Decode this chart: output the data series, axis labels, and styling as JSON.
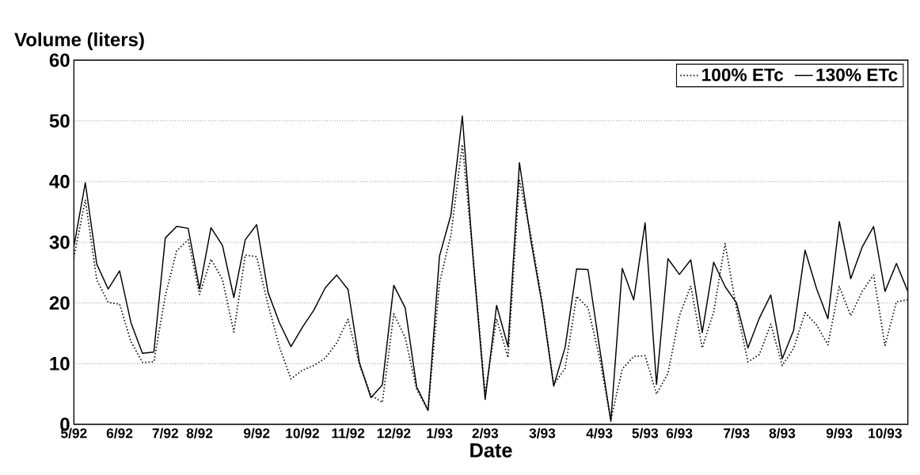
{
  "chart_data": {
    "type": "line",
    "xlabel": "Date",
    "ylabel": "Volume (liters)",
    "categories": [
      "5/92",
      null,
      null,
      null,
      "6/92",
      null,
      null,
      null,
      "7/92",
      null,
      null,
      "8/92",
      null,
      null,
      null,
      null,
      "9/92",
      null,
      null,
      null,
      "10/92",
      null,
      null,
      null,
      "11/92",
      null,
      null,
      null,
      "12/92",
      null,
      null,
      null,
      "1/93",
      null,
      null,
      null,
      "2/93",
      null,
      null,
      null,
      null,
      "3/93",
      null,
      null,
      null,
      null,
      "4/93",
      null,
      null,
      null,
      "5/93",
      null,
      null,
      "6/93",
      null,
      null,
      null,
      null,
      "7/93",
      null,
      null,
      null,
      "8/93",
      null,
      null,
      null,
      null,
      "9/93",
      null,
      null,
      null,
      "10/93",
      null,
      null
    ],
    "series": [
      {
        "name": "100% ETc",
        "color": "#000000",
        "line_style": "dotted",
        "values": [
          27.5,
          37.0,
          23.8,
          20.1,
          19.8,
          13.6,
          10.2,
          10.3,
          21.2,
          28.6,
          30.4,
          21.4,
          27.2,
          23.9,
          15.2,
          27.9,
          27.6,
          19.7,
          12.7,
          7.5,
          8.9,
          9.7,
          10.9,
          13.4,
          17.3,
          9.8,
          4.8,
          3.6,
          18.2,
          14.3,
          5.8,
          2.3,
          23.3,
          31.2,
          46.1,
          26.5,
          5.0,
          17.4,
          11.0,
          40.2,
          31.2,
          20.1,
          6.6,
          9.2,
          21.1,
          19.2,
          11.1,
          0.7,
          9.1,
          11.2,
          11.3,
          5.0,
          8.4,
          17.9,
          22.8,
          12.6,
          18.5,
          29.8,
          19.1,
          10.3,
          11.5,
          16.5,
          9.7,
          12.5,
          18.4,
          16.4,
          13.1,
          22.7,
          17.9,
          21.9,
          24.6,
          13.0,
          20.2,
          20.5
        ]
      },
      {
        "name": "130% ETc",
        "color": "#000000",
        "line_style": "solid",
        "values": [
          29.3,
          39.8,
          26.4,
          22.3,
          25.3,
          16.7,
          11.7,
          11.9,
          30.7,
          32.6,
          32.3,
          22.3,
          32.4,
          29.5,
          20.9,
          30.4,
          32.9,
          21.7,
          16.7,
          12.8,
          16.0,
          18.8,
          22.5,
          24.6,
          22.2,
          10.1,
          4.4,
          6.5,
          22.9,
          19.2,
          6.2,
          2.3,
          27.7,
          34.5,
          50.8,
          26.0,
          4.1,
          19.6,
          12.8,
          43.1,
          30.3,
          19.6,
          6.3,
          12.7,
          25.6,
          25.5,
          12.8,
          0.5,
          25.7,
          20.5,
          33.2,
          6.6,
          27.3,
          24.7,
          27.1,
          15.1,
          26.7,
          22.7,
          20.0,
          12.6,
          17.5,
          21.3,
          10.8,
          15.5,
          28.7,
          22.4,
          17.4,
          33.4,
          24.0,
          29.2,
          32.6,
          21.9,
          26.5,
          21.9
        ]
      }
    ],
    "ylim": [
      0,
      60
    ],
    "yticks": [
      0,
      10,
      20,
      30,
      40,
      50,
      60
    ],
    "grid": "y",
    "legend": "top right"
  }
}
